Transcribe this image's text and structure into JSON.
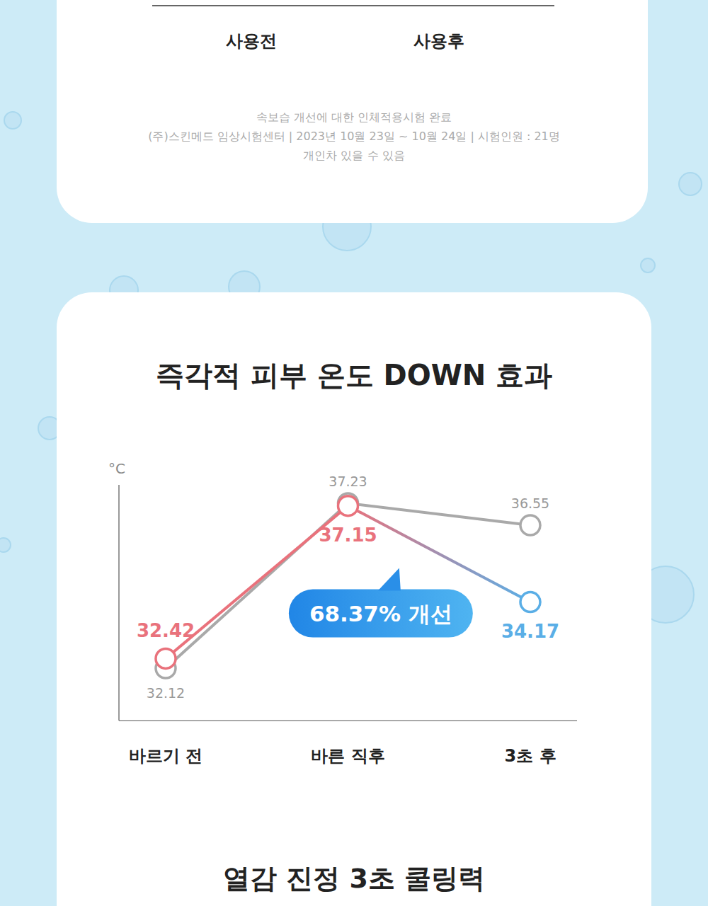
{
  "page": {
    "top_card": {
      "labels": [
        "사용전",
        "사용후"
      ],
      "footnote": [
        "속보습 개선에 대한 인체적용시험 완료",
        "(주)스킨메드  임상시험센터 | 2023년 10월 23일 ~ 10월 24일 | 시험인원 : 21명",
        "개인차 있을 수 있음"
      ]
    },
    "next_title": "열감 진정 3초 쿨링력"
  },
  "chart_data": {
    "type": "line",
    "title": "즉각적 피부 온도 DOWN 효과",
    "y_label": "°C",
    "categories": [
      "바르기 전",
      "바른 직후",
      "3초 후"
    ],
    "series": [
      {
        "color": "#a9a9a9",
        "values": [
          32.12,
          37.23,
          36.55
        ]
      },
      {
        "color": "#e9727c",
        "colors": [
          "#e9727c",
          "#e9727c",
          "#5aaee6"
        ],
        "values": [
          32.42,
          37.15,
          34.17
        ]
      }
    ],
    "ylim": [
      30.5,
      37.8
    ],
    "yticks": [],
    "grid": false,
    "tick_labels": "x",
    "data_labels": true,
    "marker": "circle",
    "annotation": "68.37% 개선"
  }
}
